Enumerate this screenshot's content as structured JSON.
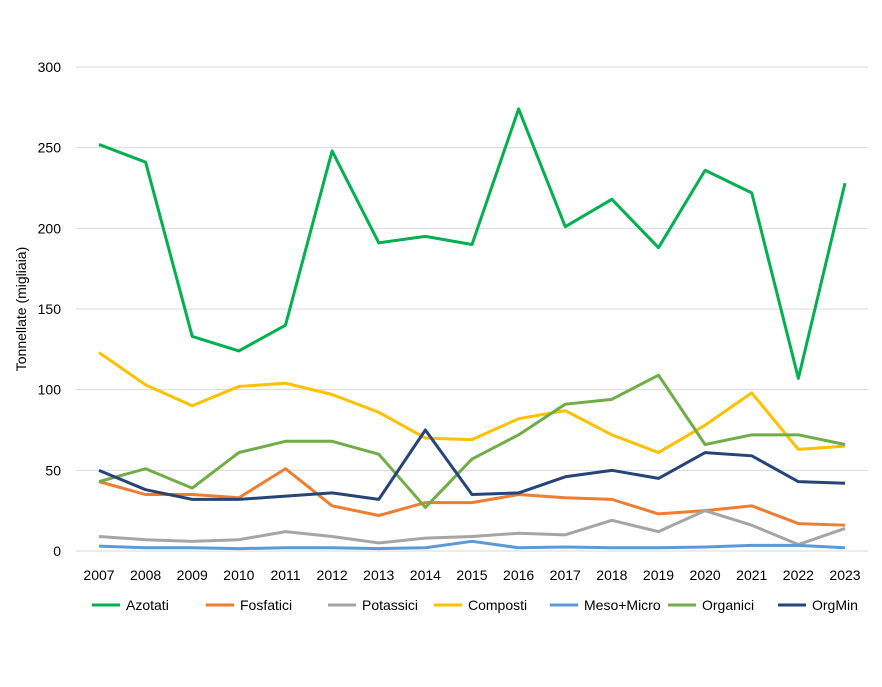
{
  "chart_data": {
    "type": "line",
    "title": "",
    "xlabel": "",
    "ylabel": "Tonnellate (migliaia)",
    "ylim": [
      0,
      300
    ],
    "yticks": [
      0,
      50,
      100,
      150,
      200,
      250,
      300
    ],
    "grid": true,
    "legend_position": "bottom",
    "categories": [
      "2007",
      "2008",
      "2009",
      "2010",
      "2011",
      "2012",
      "2013",
      "2014",
      "2015",
      "2016",
      "2017",
      "2018",
      "2019",
      "2020",
      "2021",
      "2022",
      "2023"
    ],
    "series": [
      {
        "name": "Azotati",
        "color": "#00b050",
        "values": [
          252,
          241,
          133,
          124,
          140,
          248,
          191,
          195,
          190,
          274,
          201,
          218,
          188,
          236,
          222,
          107,
          228
        ]
      },
      {
        "name": "Fosfatici",
        "color": "#ed7d31",
        "values": [
          43,
          35,
          35,
          33,
          51,
          28,
          22,
          30,
          30,
          35,
          33,
          32,
          23,
          25,
          28,
          17,
          16
        ]
      },
      {
        "name": "Potassici",
        "color": "#a5a5a5",
        "values": [
          9,
          7,
          6,
          7,
          12,
          9,
          5,
          8,
          9,
          11,
          10,
          19,
          12,
          25,
          16,
          4,
          14
        ]
      },
      {
        "name": "Composti",
        "color": "#ffc000",
        "values": [
          123,
          103,
          90,
          102,
          104,
          97,
          86,
          70,
          69,
          82,
          87,
          72,
          61,
          78,
          98,
          63,
          65
        ]
      },
      {
        "name": "Meso+Micro",
        "color": "#5b9bd5",
        "values": [
          3,
          2,
          2,
          1.5,
          2,
          2,
          1.5,
          2,
          6,
          2,
          2.5,
          2,
          2,
          2.5,
          3.5,
          3.5,
          2
        ]
      },
      {
        "name": "Organici",
        "color": "#70ad47",
        "values": [
          43,
          51,
          39,
          61,
          68,
          68,
          60,
          27,
          57,
          72,
          91,
          94,
          109,
          66,
          72,
          72,
          66
        ]
      },
      {
        "name": "OrgMin",
        "color": "#264478",
        "values": [
          50,
          38,
          32,
          32,
          34,
          36,
          32,
          75,
          35,
          36,
          46,
          50,
          45,
          61,
          59,
          43,
          42
        ]
      }
    ]
  }
}
